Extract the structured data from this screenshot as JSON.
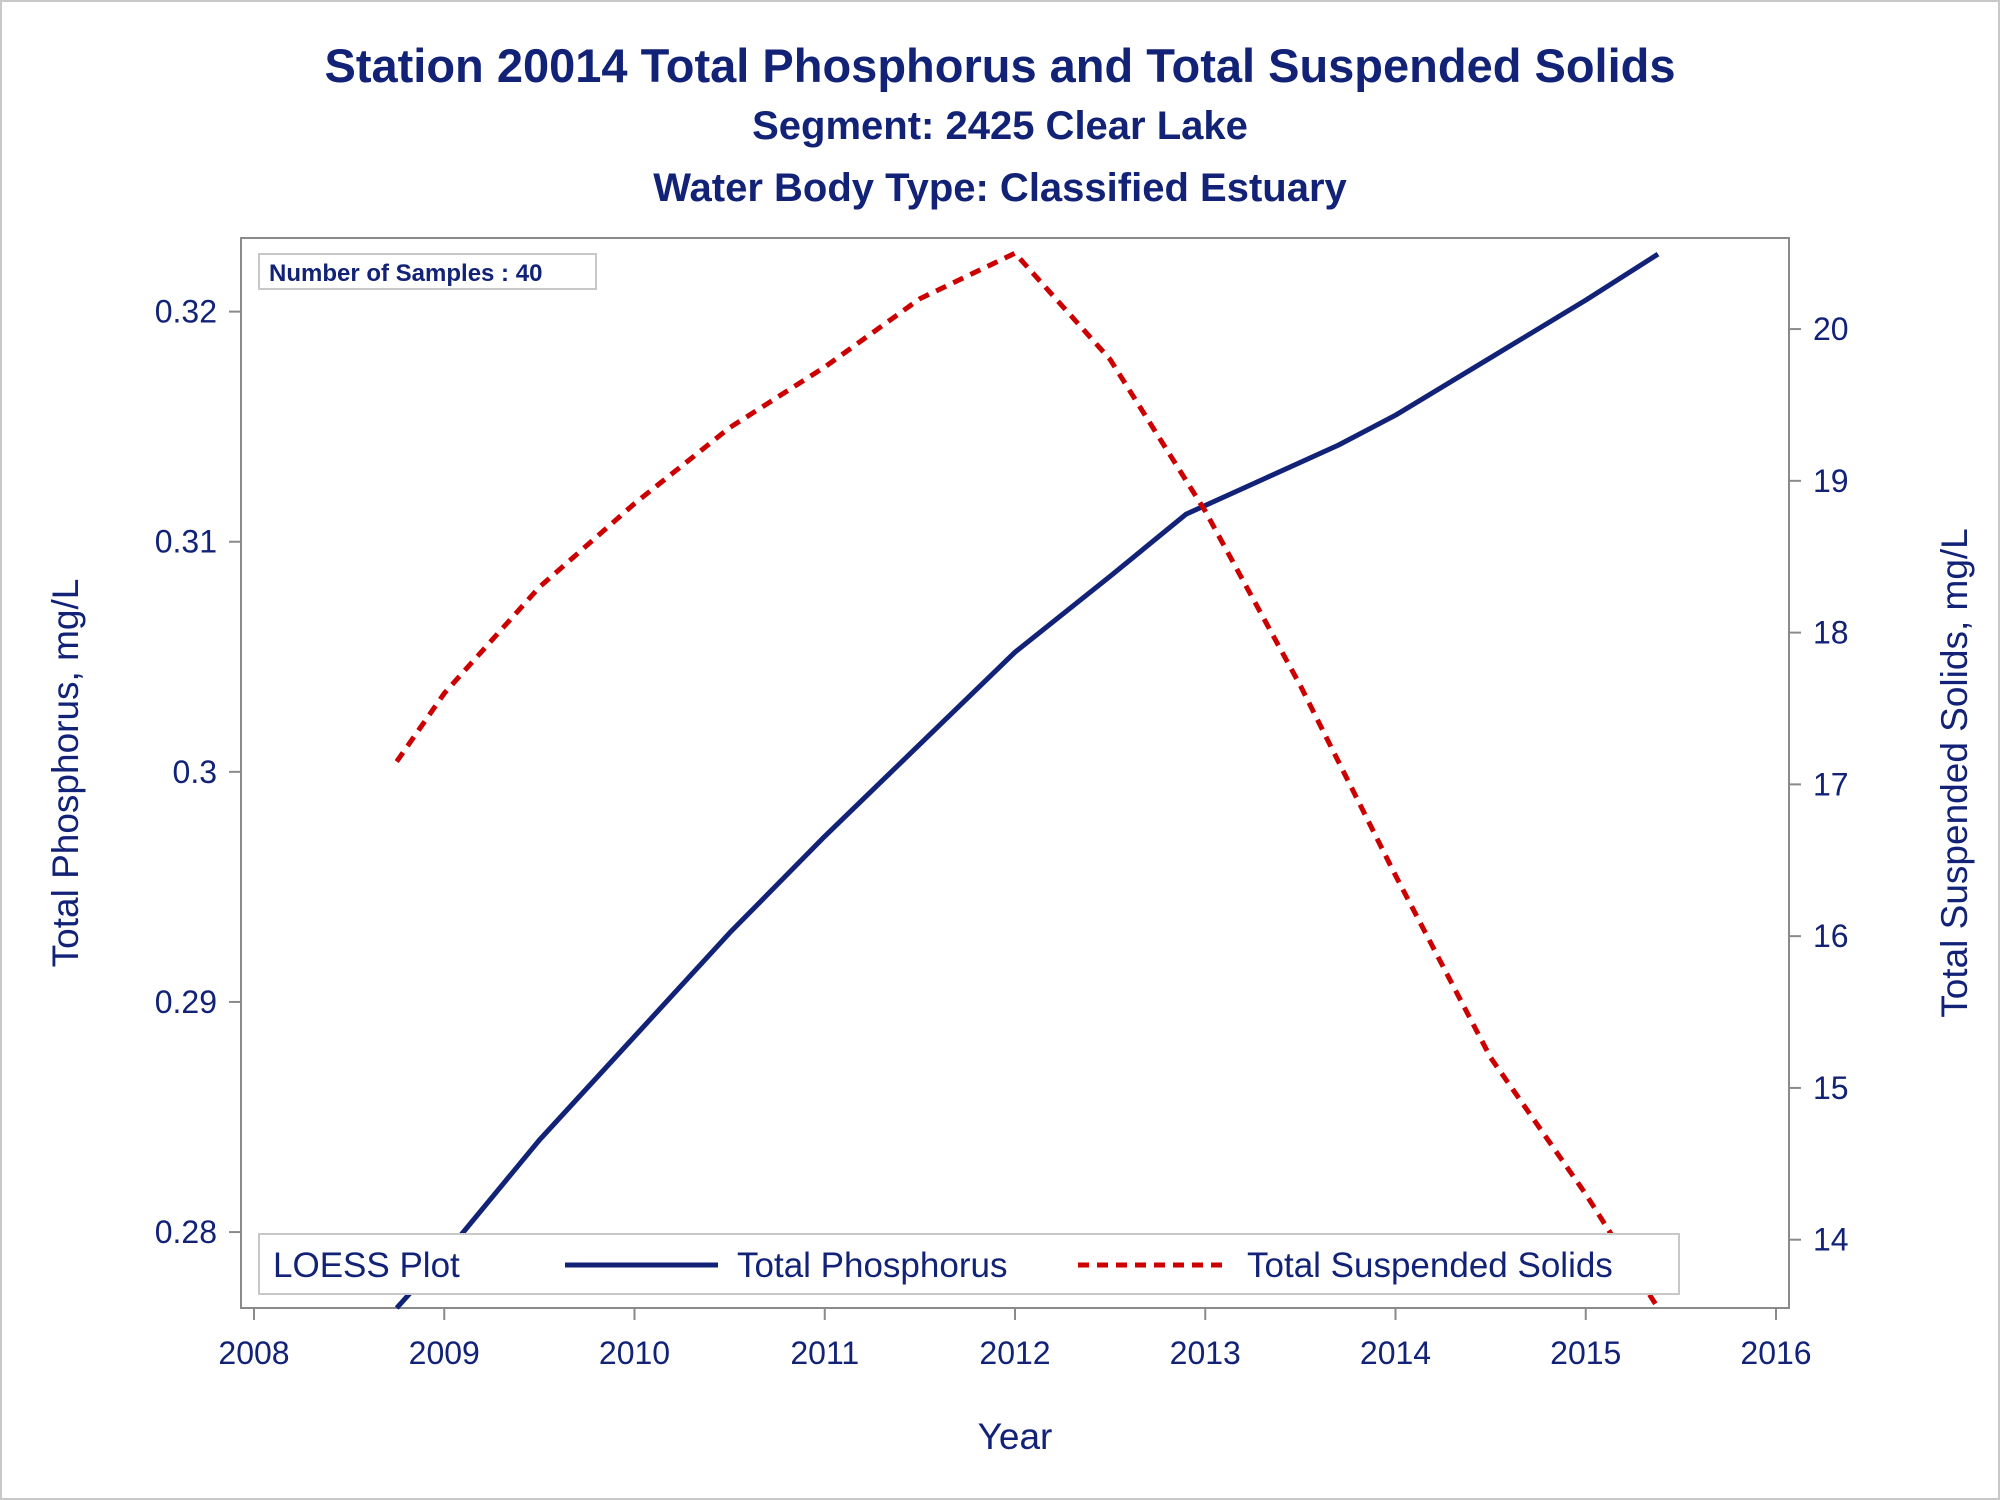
{
  "title": "Station 20014  Total Phosphorus and Total Suspended Solids",
  "subtitle": "Segment: 2425  Clear Lake",
  "subtitle2": "Water Body Type: Classified Estuary",
  "inset": "Number of Samples : 40",
  "chart_data": {
    "type": "line",
    "xlabel": "Year",
    "ylabel": "Total Phosphorus, mg/L",
    "y2label": "Total Suspended Solids, mg/L",
    "xlim": [
      2008,
      2016
    ],
    "ylim": [
      0.2767,
      0.3232
    ],
    "y2lim": [
      13.55,
      20.6
    ],
    "xticks": [
      "2008",
      "2009",
      "2010",
      "2011",
      "2012",
      "2013",
      "2014",
      "2015",
      "2016"
    ],
    "yticks": [
      "0.28",
      "0.29",
      "0.3",
      "0.31",
      "0.32"
    ],
    "y2ticks": [
      "14",
      "15",
      "16",
      "17",
      "18",
      "19",
      "20"
    ],
    "grid": false,
    "legend": {
      "title": "LOESS Plot",
      "position": "bottom-inside",
      "entries": [
        "Total Phosphorus",
        "Total Suspended Solids"
      ]
    },
    "series": [
      {
        "name": "Total Phosphorus",
        "axis": "left",
        "color": "#112277",
        "style": "solid",
        "x": [
          2008.75,
          2009.0,
          2009.5,
          2010.0,
          2010.5,
          2011.0,
          2011.5,
          2012.0,
          2012.5,
          2012.9,
          2013.3,
          2013.7,
          2014.0,
          2014.5,
          2015.0,
          2015.38
        ],
        "y": [
          0.2767,
          0.279,
          0.284,
          0.2885,
          0.293,
          0.2972,
          0.3012,
          0.3052,
          0.3085,
          0.3112,
          0.3127,
          0.3142,
          0.3155,
          0.318,
          0.3205,
          0.3225
        ]
      },
      {
        "name": "Total Suspended Solids",
        "axis": "right",
        "color": "#cc0000",
        "style": "dashed",
        "x": [
          2008.75,
          2009.0,
          2009.5,
          2010.0,
          2010.5,
          2011.0,
          2011.5,
          2012.0,
          2012.5,
          2013.0,
          2013.5,
          2014.0,
          2014.5,
          2015.0,
          2015.38
        ],
        "y": [
          17.15,
          17.6,
          18.3,
          18.85,
          19.35,
          19.75,
          20.2,
          20.5,
          19.8,
          18.8,
          17.65,
          16.4,
          15.2,
          14.3,
          13.55
        ]
      }
    ]
  }
}
